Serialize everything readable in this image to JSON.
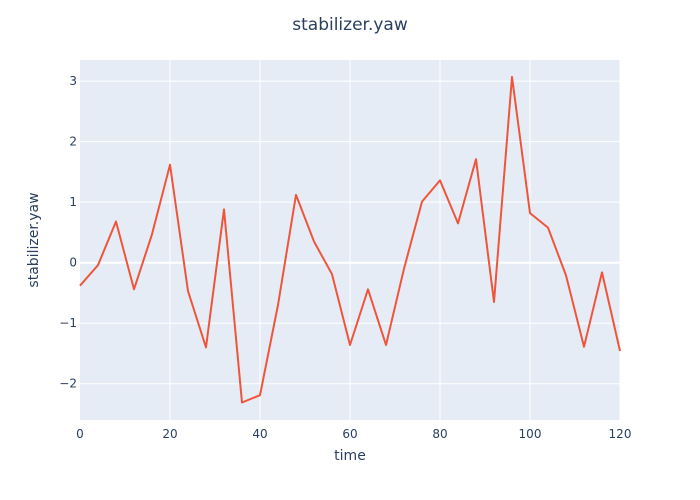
{
  "chart_data": {
    "type": "line",
    "title": "stabilizer.yaw",
    "xlabel": "time",
    "ylabel": "stabilizer.yaw",
    "xlim": [
      0,
      120
    ],
    "ylim": [
      -2.6,
      3.35
    ],
    "grid": true,
    "x_ticks": [
      {
        "value": 0,
        "label": "0"
      },
      {
        "value": 20,
        "label": "20"
      },
      {
        "value": 40,
        "label": "40"
      },
      {
        "value": 60,
        "label": "60"
      },
      {
        "value": 80,
        "label": "80"
      },
      {
        "value": 100,
        "label": "100"
      },
      {
        "value": 120,
        "label": "120"
      }
    ],
    "y_ticks": [
      {
        "value": -2,
        "label": "−2"
      },
      {
        "value": -1,
        "label": "−1"
      },
      {
        "value": 0,
        "label": "0"
      },
      {
        "value": 1,
        "label": "1"
      },
      {
        "value": 2,
        "label": "2"
      },
      {
        "value": 3,
        "label": "3"
      }
    ],
    "series": [
      {
        "color": "#ef553b",
        "x": [
          0,
          4,
          8,
          12,
          16,
          20,
          24,
          28,
          32,
          36,
          40,
          44,
          48,
          52,
          56,
          60,
          64,
          68,
          72,
          76,
          80,
          84,
          88,
          92,
          96,
          100,
          104,
          108,
          112,
          116,
          120
        ],
        "y": [
          -0.38,
          -0.04,
          0.68,
          -0.44,
          0.47,
          1.62,
          -0.47,
          -1.4,
          0.88,
          -2.31,
          -2.19,
          -0.7,
          1.12,
          0.35,
          -0.19,
          -1.36,
          -0.44,
          -1.36,
          -0.1,
          1.01,
          1.36,
          0.65,
          1.71,
          -0.65,
          3.07,
          0.82,
          0.58,
          -0.21,
          -1.39,
          -0.16,
          -1.46
        ]
      }
    ]
  },
  "colors": {
    "plot_background": "#e5ecf6",
    "grid": "#ffffff",
    "text": "#2a3f5f"
  }
}
